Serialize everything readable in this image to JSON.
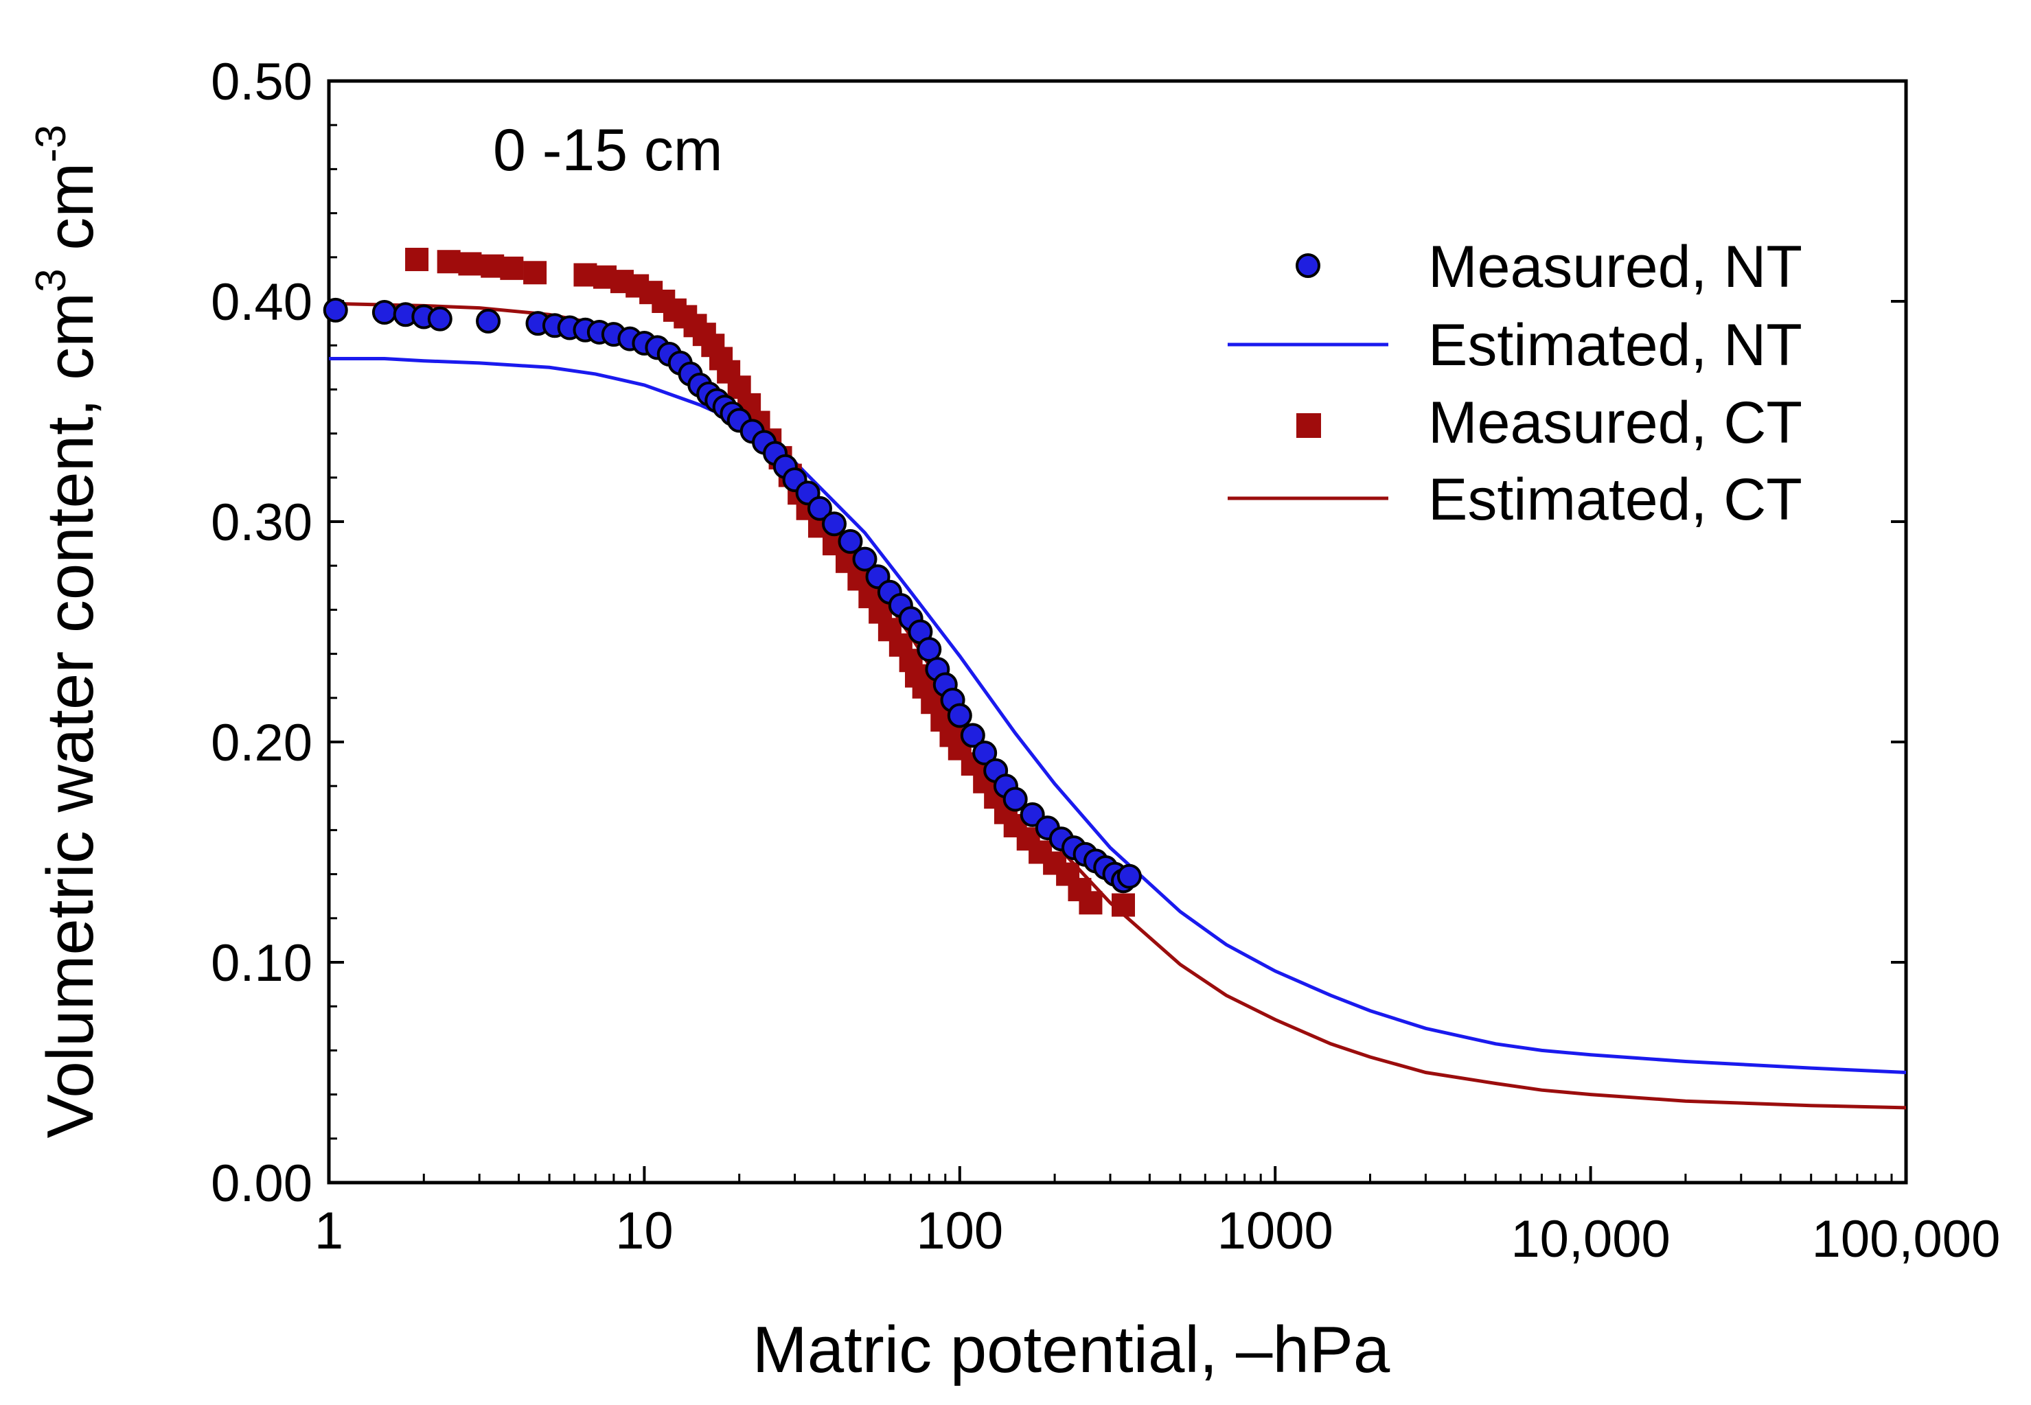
{
  "chart_data": {
    "type": "scatter",
    "title": "",
    "annotation": "0 -15 cm",
    "xlabel": "Matric potential, –hPa",
    "ylabel": {
      "main": "Volumetric water content, cm",
      "sup1": "3",
      "mid": " cm",
      "sup2": "-3"
    },
    "x_scale": "log",
    "xlim": [
      1,
      100000
    ],
    "ylim": [
      0,
      0.5
    ],
    "x_ticks": [
      1,
      10,
      100,
      1000,
      10000,
      100000
    ],
    "x_tick_labels": [
      "1",
      "10",
      "100",
      "1000",
      "10,000",
      "100,000"
    ],
    "y_ticks": [
      0,
      0.1,
      0.2,
      0.3,
      0.4,
      0.5
    ],
    "y_tick_labels": [
      "0.00",
      "0.10",
      "0.20",
      "0.30",
      "0.40",
      "0.50"
    ],
    "grid": false,
    "legend_position": "top-right",
    "series": [
      {
        "name": "Measured, NT",
        "kind": "points",
        "marker": "circle",
        "color": "#1f1fe0",
        "edge_color": "#000000",
        "x": [
          1.05,
          1.5,
          1.75,
          2.0,
          2.25,
          3.2,
          4.6,
          5.2,
          5.8,
          6.5,
          7.2,
          8.0,
          9.0,
          10.0,
          11.0,
          12.0,
          13.0,
          14.0,
          15.0,
          16.0,
          17.0,
          18.0,
          19.0,
          20.0,
          22.0,
          24.0,
          26.0,
          28.0,
          30.0,
          33.0,
          36.0,
          40.0,
          45.0,
          50.0,
          55.0,
          60.0,
          65.0,
          70.0,
          75.0,
          80.0,
          85.0,
          90.0,
          95.0,
          100.0,
          110.0,
          120.0,
          130.0,
          140.0,
          150.0,
          170.0,
          190.0,
          210.0,
          230.0,
          250.0,
          270.0,
          290.0,
          310.0,
          330.0,
          345.0
        ],
        "y": [
          0.396,
          0.395,
          0.394,
          0.393,
          0.392,
          0.391,
          0.39,
          0.389,
          0.388,
          0.387,
          0.386,
          0.385,
          0.383,
          0.381,
          0.379,
          0.376,
          0.372,
          0.367,
          0.362,
          0.358,
          0.355,
          0.352,
          0.349,
          0.346,
          0.341,
          0.336,
          0.331,
          0.325,
          0.319,
          0.313,
          0.306,
          0.299,
          0.291,
          0.283,
          0.275,
          0.268,
          0.262,
          0.256,
          0.25,
          0.242,
          0.233,
          0.226,
          0.219,
          0.212,
          0.203,
          0.195,
          0.187,
          0.18,
          0.174,
          0.167,
          0.161,
          0.156,
          0.152,
          0.149,
          0.146,
          0.143,
          0.14,
          0.137,
          0.139
        ]
      },
      {
        "name": "Estimated, NT",
        "kind": "line",
        "color": "#1a1aee",
        "x": [
          1,
          1.5,
          2,
          3,
          5,
          7,
          10,
          15,
          20,
          30,
          50,
          70,
          100,
          150,
          200,
          300,
          500,
          700,
          1000,
          1500,
          2000,
          3000,
          5000,
          7000,
          10000,
          20000,
          50000,
          100000
        ],
        "y": [
          0.374,
          0.374,
          0.373,
          0.372,
          0.37,
          0.367,
          0.362,
          0.353,
          0.345,
          0.327,
          0.295,
          0.268,
          0.239,
          0.204,
          0.181,
          0.152,
          0.123,
          0.108,
          0.096,
          0.085,
          0.078,
          0.07,
          0.063,
          0.06,
          0.058,
          0.055,
          0.052,
          0.05
        ]
      },
      {
        "name": "Measured, CT",
        "kind": "points",
        "marker": "square",
        "color": "#a00c0c",
        "edge_color": "#7a0000",
        "x": [
          1.9,
          2.4,
          2.8,
          3.3,
          3.8,
          4.5,
          6.5,
          7.5,
          8.5,
          9.5,
          10.5,
          11.5,
          12.5,
          13.5,
          14.5,
          15.5,
          16.5,
          17.5,
          18.5,
          20.0,
          21.5,
          23.0,
          25.0,
          27.0,
          29.0,
          31.0,
          33.0,
          36.0,
          40.0,
          44.0,
          48.0,
          52.0,
          56.0,
          60.0,
          65.0,
          70.0,
          73.0,
          77.0,
          82.0,
          88.0,
          94.0,
          100.0,
          110.0,
          120.0,
          130.0,
          140.0,
          150.0,
          165.0,
          180.0,
          200.0,
          220.0,
          240.0,
          260.0,
          330.0
        ],
        "y": [
          0.419,
          0.418,
          0.417,
          0.416,
          0.415,
          0.413,
          0.412,
          0.411,
          0.409,
          0.407,
          0.404,
          0.4,
          0.396,
          0.393,
          0.389,
          0.385,
          0.38,
          0.374,
          0.368,
          0.361,
          0.353,
          0.345,
          0.337,
          0.329,
          0.321,
          0.313,
          0.306,
          0.298,
          0.29,
          0.282,
          0.274,
          0.266,
          0.259,
          0.251,
          0.244,
          0.237,
          0.23,
          0.225,
          0.218,
          0.21,
          0.203,
          0.197,
          0.19,
          0.182,
          0.175,
          0.168,
          0.162,
          0.156,
          0.15,
          0.145,
          0.14,
          0.133,
          0.127,
          0.126
        ]
      },
      {
        "name": "Estimated, CT",
        "kind": "line",
        "color": "#9b0d0d",
        "x": [
          1,
          2,
          3,
          5,
          7,
          10,
          15,
          20,
          30,
          50,
          70,
          100,
          150,
          200,
          300,
          500,
          700,
          1000,
          1500,
          2000,
          3000,
          5000,
          7000,
          10000,
          20000,
          50000,
          100000
        ],
        "y": [
          0.399,
          0.398,
          0.397,
          0.394,
          0.39,
          0.383,
          0.367,
          0.351,
          0.321,
          0.278,
          0.248,
          0.213,
          0.177,
          0.154,
          0.127,
          0.099,
          0.085,
          0.074,
          0.063,
          0.057,
          0.05,
          0.045,
          0.042,
          0.04,
          0.037,
          0.035,
          0.034
        ]
      }
    ]
  }
}
